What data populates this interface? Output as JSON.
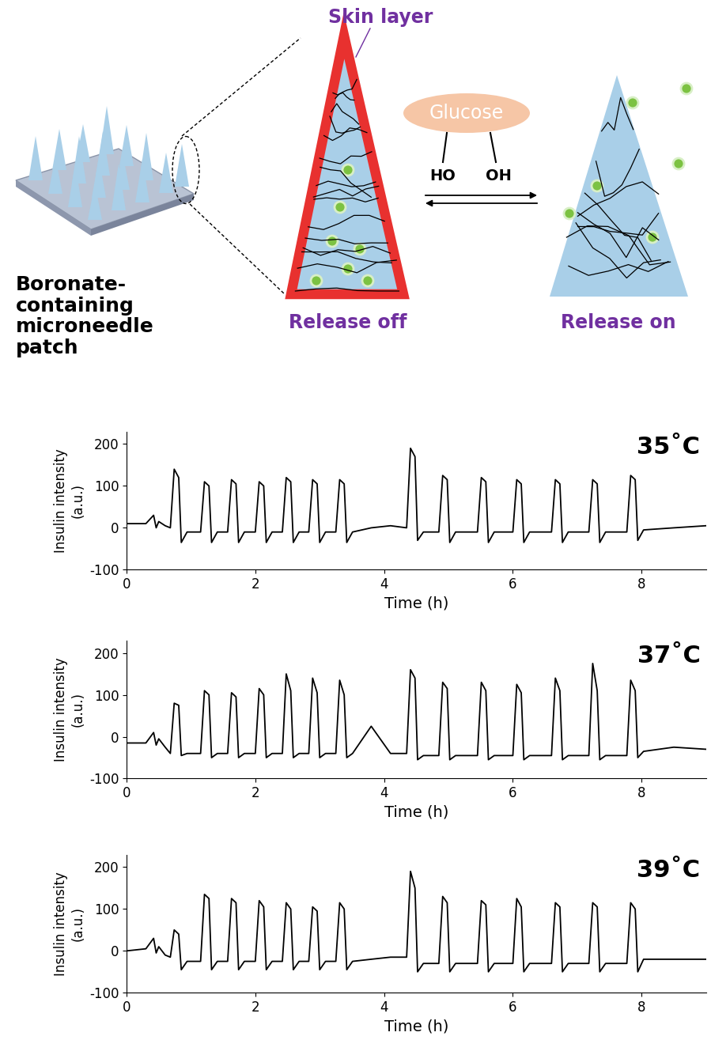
{
  "diagram": {
    "skin_layer": "Skin layer",
    "glucose": "Glucose",
    "ho": "HO",
    "oh": "OH",
    "patch": "Boronate-\ncontaining\nmicroneedle\npatch",
    "release_off": "Release off",
    "release_on": "Release on"
  },
  "chart_data": [
    {
      "type": "line",
      "title": "35˚C",
      "x_label": "Time (h)",
      "y_label": "Insulin intensity\n(a.u.)",
      "color": "#000000",
      "xlim": [
        0,
        9
      ],
      "xticks": [
        0,
        2,
        4,
        6,
        8
      ],
      "ylim": [
        -100,
        230
      ],
      "yticks": [
        -100,
        0,
        100,
        200
      ],
      "x": [
        0,
        0.3,
        0.42,
        0.46,
        0.5,
        0.6,
        0.68,
        0.74,
        0.81,
        0.85,
        0.94,
        1.15,
        1.21,
        1.28,
        1.32,
        1.41,
        1.57,
        1.63,
        1.7,
        1.74,
        1.83,
        2.0,
        2.06,
        2.13,
        2.17,
        2.26,
        2.42,
        2.48,
        2.55,
        2.59,
        2.68,
        2.83,
        2.89,
        2.96,
        3.0,
        3.09,
        3.25,
        3.31,
        3.38,
        3.42,
        3.51,
        3.8,
        4.1,
        4.35,
        4.41,
        4.48,
        4.52,
        4.61,
        4.85,
        4.91,
        4.98,
        5.02,
        5.11,
        5.45,
        5.51,
        5.58,
        5.62,
        5.71,
        6.0,
        6.06,
        6.13,
        6.17,
        6.26,
        6.6,
        6.66,
        6.73,
        6.77,
        6.86,
        7.18,
        7.24,
        7.31,
        7.35,
        7.44,
        7.77,
        7.83,
        7.9,
        7.94,
        8.03,
        8.5,
        9.0
      ],
      "values": [
        10,
        10,
        30,
        0,
        15,
        5,
        0,
        140,
        120,
        -35,
        -10,
        -10,
        110,
        100,
        -35,
        -10,
        -10,
        115,
        105,
        -35,
        -10,
        -10,
        110,
        100,
        -35,
        -10,
        -10,
        120,
        110,
        -35,
        -10,
        -10,
        115,
        105,
        -35,
        -10,
        -10,
        115,
        105,
        -35,
        -10,
        0,
        5,
        0,
        190,
        170,
        -30,
        -10,
        -10,
        125,
        115,
        -35,
        -10,
        -10,
        120,
        110,
        -35,
        -10,
        -10,
        115,
        105,
        -35,
        -10,
        -10,
        115,
        105,
        -35,
        -10,
        -10,
        115,
        105,
        -35,
        -10,
        -10,
        125,
        115,
        -30,
        -5,
        0,
        5
      ]
    },
    {
      "type": "line",
      "title": "37˚C",
      "x_label": "Time (h)",
      "y_label": "Insulin intensity\n(a.u.)",
      "color": "#000000",
      "xlim": [
        0,
        9
      ],
      "xticks": [
        0,
        2,
        4,
        6,
        8
      ],
      "ylim": [
        -100,
        230
      ],
      "yticks": [
        -100,
        0,
        100,
        200
      ],
      "x": [
        0,
        0.3,
        0.42,
        0.46,
        0.5,
        0.6,
        0.68,
        0.74,
        0.81,
        0.85,
        0.94,
        1.15,
        1.21,
        1.28,
        1.32,
        1.41,
        1.57,
        1.63,
        1.7,
        1.74,
        1.83,
        2.0,
        2.06,
        2.13,
        2.17,
        2.26,
        2.42,
        2.48,
        2.55,
        2.59,
        2.68,
        2.83,
        2.89,
        2.96,
        3.0,
        3.09,
        3.25,
        3.31,
        3.38,
        3.42,
        3.51,
        3.8,
        4.1,
        4.35,
        4.41,
        4.48,
        4.52,
        4.61,
        4.85,
        4.91,
        4.98,
        5.02,
        5.11,
        5.45,
        5.51,
        5.58,
        5.62,
        5.71,
        6.0,
        6.06,
        6.13,
        6.17,
        6.26,
        6.6,
        6.66,
        6.73,
        6.77,
        6.86,
        7.18,
        7.24,
        7.31,
        7.35,
        7.44,
        7.77,
        7.83,
        7.9,
        7.94,
        8.03,
        8.5,
        9.0
      ],
      "values": [
        -15,
        -15,
        10,
        -20,
        -5,
        -25,
        -40,
        80,
        75,
        -45,
        -40,
        -40,
        110,
        100,
        -50,
        -40,
        -40,
        105,
        95,
        -50,
        -40,
        -40,
        115,
        100,
        -50,
        -40,
        -40,
        150,
        110,
        -50,
        -40,
        -40,
        140,
        105,
        -50,
        -40,
        -40,
        135,
        100,
        -50,
        -40,
        25,
        -40,
        -40,
        160,
        140,
        -55,
        -45,
        -45,
        130,
        115,
        -55,
        -45,
        -45,
        130,
        110,
        -55,
        -45,
        -45,
        125,
        105,
        -55,
        -45,
        -45,
        140,
        110,
        -55,
        -45,
        -45,
        175,
        110,
        -55,
        -45,
        -45,
        135,
        110,
        -50,
        -35,
        -25,
        -30
      ]
    },
    {
      "type": "line",
      "title": "39˚C",
      "x_label": "Time (h)",
      "y_label": "Insulin intensity\n(a.u.)",
      "color": "#000000",
      "xlim": [
        0,
        9
      ],
      "xticks": [
        0,
        2,
        4,
        6,
        8
      ],
      "ylim": [
        -100,
        230
      ],
      "yticks": [
        -100,
        0,
        100,
        200
      ],
      "x": [
        0,
        0.3,
        0.42,
        0.46,
        0.5,
        0.6,
        0.68,
        0.74,
        0.81,
        0.85,
        0.94,
        1.15,
        1.21,
        1.28,
        1.32,
        1.41,
        1.57,
        1.63,
        1.7,
        1.74,
        1.83,
        2.0,
        2.06,
        2.13,
        2.17,
        2.26,
        2.42,
        2.48,
        2.55,
        2.59,
        2.68,
        2.83,
        2.89,
        2.96,
        3.0,
        3.09,
        3.25,
        3.31,
        3.38,
        3.42,
        3.51,
        3.8,
        4.1,
        4.35,
        4.41,
        4.48,
        4.52,
        4.61,
        4.85,
        4.91,
        4.98,
        5.02,
        5.11,
        5.45,
        5.51,
        5.58,
        5.62,
        5.71,
        6.0,
        6.06,
        6.13,
        6.17,
        6.26,
        6.6,
        6.66,
        6.73,
        6.77,
        6.86,
        7.18,
        7.24,
        7.31,
        7.35,
        7.44,
        7.77,
        7.83,
        7.9,
        7.94,
        8.03,
        8.5,
        9.0
      ],
      "values": [
        0,
        5,
        30,
        -5,
        10,
        -10,
        -15,
        50,
        40,
        -45,
        -25,
        -25,
        135,
        125,
        -45,
        -25,
        -25,
        125,
        115,
        -45,
        -25,
        -25,
        120,
        105,
        -45,
        -25,
        -25,
        115,
        100,
        -45,
        -25,
        -25,
        105,
        95,
        -45,
        -25,
        -25,
        115,
        100,
        -45,
        -25,
        -20,
        -15,
        -15,
        190,
        150,
        -50,
        -30,
        -30,
        130,
        115,
        -50,
        -30,
        -30,
        120,
        110,
        -50,
        -30,
        -30,
        125,
        105,
        -50,
        -30,
        -30,
        115,
        105,
        -50,
        -30,
        -30,
        115,
        105,
        -50,
        -30,
        -30,
        115,
        100,
        -50,
        -20,
        -20,
        -20
      ]
    }
  ]
}
